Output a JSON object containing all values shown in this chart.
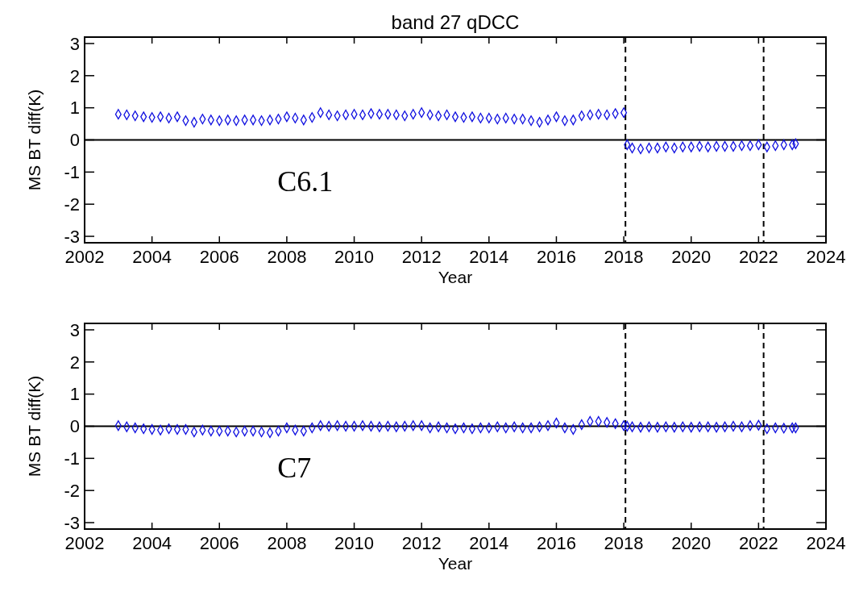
{
  "chart_data": [
    {
      "type": "scatter",
      "title": "band 27 qDCC",
      "xlabel": "Year",
      "ylabel": "MS BT diff(K)",
      "xlim": [
        2002,
        2024
      ],
      "xticks": [
        2002,
        2004,
        2006,
        2008,
        2010,
        2012,
        2014,
        2016,
        2018,
        2020,
        2022,
        2024
      ],
      "ylim": [
        -3.2,
        3.2
      ],
      "yticks": [
        -3,
        -2,
        -1,
        0,
        1,
        2,
        3
      ],
      "marker": "diamond",
      "grid": false,
      "annotations": [
        "C6.1"
      ],
      "ref_lines": [
        {
          "axis": "y",
          "value": 0,
          "color": "#000000",
          "line_style": "solid"
        },
        {
          "axis": "x",
          "value": 2018.05,
          "color": "#000000",
          "line_style": "dashed"
        },
        {
          "axis": "x",
          "value": 2022.15,
          "color": "#000000",
          "line_style": "dashed"
        }
      ],
      "series": [
        {
          "color": "#1010e0",
          "x": [
            2003,
            2003.25,
            2003.5,
            2003.75,
            2004,
            2004.25,
            2004.5,
            2004.75,
            2005,
            2005.25,
            2005.5,
            2005.75,
            2006,
            2006.25,
            2006.5,
            2006.75,
            2007,
            2007.25,
            2007.5,
            2007.75,
            2008,
            2008.25,
            2008.5,
            2008.75,
            2009,
            2009.25,
            2009.5,
            2009.75,
            2010,
            2010.25,
            2010.5,
            2010.75,
            2011,
            2011.25,
            2011.5,
            2011.75,
            2012,
            2012.25,
            2012.5,
            2012.75,
            2013,
            2013.25,
            2013.5,
            2013.75,
            2014,
            2014.25,
            2014.5,
            2014.75,
            2015,
            2015.25,
            2015.5,
            2015.75,
            2016,
            2016.25,
            2016.5,
            2016.75,
            2017,
            2017.25,
            2017.5,
            2017.75,
            2018,
            2018.1,
            2018.25,
            2018.5,
            2018.75,
            2019,
            2019.25,
            2019.5,
            2019.75,
            2020,
            2020.25,
            2020.5,
            2020.75,
            2021,
            2021.25,
            2021.5,
            2021.75,
            2022,
            2022.25,
            2022.5,
            2022.75,
            2023,
            2023.1
          ],
          "values": [
            0.8,
            0.78,
            0.75,
            0.72,
            0.7,
            0.72,
            0.68,
            0.72,
            0.6,
            0.55,
            0.65,
            0.62,
            0.6,
            0.62,
            0.6,
            0.62,
            0.62,
            0.6,
            0.62,
            0.65,
            0.72,
            0.68,
            0.62,
            0.7,
            0.85,
            0.78,
            0.75,
            0.78,
            0.8,
            0.78,
            0.82,
            0.8,
            0.8,
            0.78,
            0.75,
            0.8,
            0.85,
            0.78,
            0.75,
            0.78,
            0.72,
            0.7,
            0.72,
            0.68,
            0.68,
            0.65,
            0.68,
            0.65,
            0.65,
            0.6,
            0.55,
            0.62,
            0.72,
            0.6,
            0.62,
            0.75,
            0.78,
            0.8,
            0.78,
            0.82,
            0.85,
            -0.15,
            -0.25,
            -0.28,
            -0.25,
            -0.25,
            -0.22,
            -0.25,
            -0.22,
            -0.22,
            -0.2,
            -0.22,
            -0.2,
            -0.2,
            -0.2,
            -0.18,
            -0.18,
            -0.15,
            -0.22,
            -0.18,
            -0.15,
            -0.15,
            -0.12
          ]
        }
      ]
    },
    {
      "type": "scatter",
      "xlabel": "Year",
      "ylabel": "MS BT diff(K)",
      "xlim": [
        2002,
        2024
      ],
      "xticks": [
        2002,
        2004,
        2006,
        2008,
        2010,
        2012,
        2014,
        2016,
        2018,
        2020,
        2022,
        2024
      ],
      "ylim": [
        -3.2,
        3.2
      ],
      "yticks": [
        -3,
        -2,
        -1,
        0,
        1,
        2,
        3
      ],
      "marker": "diamond",
      "grid": false,
      "annotations": [
        "C7"
      ],
      "ref_lines": [
        {
          "axis": "y",
          "value": 0,
          "color": "#000000",
          "line_style": "solid"
        },
        {
          "axis": "x",
          "value": 2018.05,
          "color": "#000000",
          "line_style": "dashed"
        },
        {
          "axis": "x",
          "value": 2022.15,
          "color": "#000000",
          "line_style": "dashed"
        }
      ],
      "series": [
        {
          "color": "#1010e0",
          "x": [
            2003,
            2003.25,
            2003.5,
            2003.75,
            2004,
            2004.25,
            2004.5,
            2004.75,
            2005,
            2005.25,
            2005.5,
            2005.75,
            2006,
            2006.25,
            2006.5,
            2006.75,
            2007,
            2007.25,
            2007.5,
            2007.75,
            2008,
            2008.25,
            2008.5,
            2008.75,
            2009,
            2009.25,
            2009.5,
            2009.75,
            2010,
            2010.25,
            2010.5,
            2010.75,
            2011,
            2011.25,
            2011.5,
            2011.75,
            2012,
            2012.25,
            2012.5,
            2012.75,
            2013,
            2013.25,
            2013.5,
            2013.75,
            2014,
            2014.25,
            2014.5,
            2014.75,
            2015,
            2015.25,
            2015.5,
            2015.75,
            2016,
            2016.25,
            2016.5,
            2016.75,
            2017,
            2017.25,
            2017.5,
            2017.75,
            2018,
            2018.1,
            2018.25,
            2018.5,
            2018.75,
            2019,
            2019.25,
            2019.5,
            2019.75,
            2020,
            2020.25,
            2020.5,
            2020.75,
            2021,
            2021.25,
            2021.5,
            2021.75,
            2022,
            2022.25,
            2022.5,
            2022.75,
            2023,
            2023.1
          ],
          "values": [
            0.02,
            -0.02,
            -0.05,
            -0.08,
            -0.1,
            -0.12,
            -0.08,
            -0.1,
            -0.1,
            -0.18,
            -0.12,
            -0.15,
            -0.15,
            -0.15,
            -0.18,
            -0.15,
            -0.15,
            -0.18,
            -0.2,
            -0.15,
            -0.05,
            -0.12,
            -0.15,
            -0.05,
            0.02,
            0,
            0.02,
            0,
            0,
            0.02,
            0,
            -0.02,
            0,
            -0.02,
            0,
            0.02,
            0.02,
            -0.05,
            -0.02,
            -0.05,
            -0.08,
            -0.05,
            -0.08,
            -0.05,
            -0.05,
            -0.02,
            -0.05,
            -0.02,
            -0.05,
            -0.05,
            -0.02,
            0.02,
            0.1,
            -0.05,
            -0.1,
            0.05,
            0.15,
            0.15,
            0.12,
            0.08,
            0.02,
            0,
            -0.02,
            -0.03,
            -0.02,
            -0.03,
            -0.02,
            -0.03,
            -0.02,
            -0.03,
            -0.02,
            -0.02,
            -0.03,
            -0.02,
            0,
            -0.02,
            0.02,
            0.03,
            -0.08,
            -0.05,
            -0.06,
            -0.05,
            -0.05
          ]
        }
      ]
    }
  ]
}
